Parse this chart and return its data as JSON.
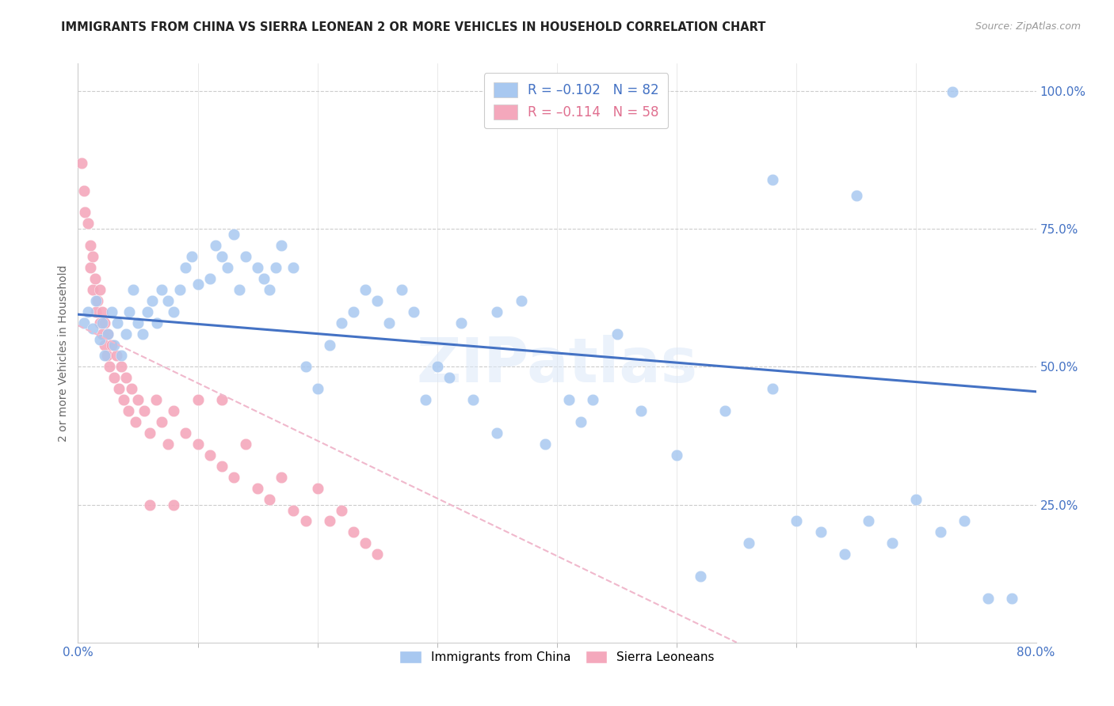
{
  "title": "IMMIGRANTS FROM CHINA VS SIERRA LEONEAN 2 OR MORE VEHICLES IN HOUSEHOLD CORRELATION CHART",
  "source": "Source: ZipAtlas.com",
  "ylabel": "2 or more Vehicles in Household",
  "legend_label1": "Immigrants from China",
  "legend_label2": "Sierra Leoneans",
  "china_color": "#a8c8f0",
  "sierra_color": "#f4a8bc",
  "china_line_color": "#4472c4",
  "sierra_line_color": "#f0b8cc",
  "watermark": "ZIPatlas",
  "xlim": [
    0.0,
    0.8
  ],
  "ylim": [
    0.0,
    1.05
  ],
  "legend1_text": "R = –0.102   N = 82",
  "legend2_text": "R = –0.114   N = 58",
  "china_line_x0": 0.0,
  "china_line_x1": 0.8,
  "china_line_y0": 0.595,
  "china_line_y1": 0.455,
  "sierra_line_x0": 0.0,
  "sierra_line_x1": 0.55,
  "sierra_line_y0": 0.575,
  "sierra_line_y1": 0.0,
  "china_x": [
    0.005,
    0.008,
    0.012,
    0.015,
    0.018,
    0.02,
    0.022,
    0.025,
    0.028,
    0.03,
    0.033,
    0.036,
    0.04,
    0.043,
    0.046,
    0.05,
    0.054,
    0.058,
    0.062,
    0.066,
    0.07,
    0.075,
    0.08,
    0.085,
    0.09,
    0.095,
    0.1,
    0.11,
    0.115,
    0.12,
    0.125,
    0.13,
    0.135,
    0.14,
    0.15,
    0.155,
    0.16,
    0.165,
    0.17,
    0.18,
    0.19,
    0.2,
    0.21,
    0.22,
    0.23,
    0.24,
    0.25,
    0.26,
    0.27,
    0.28,
    0.29,
    0.3,
    0.31,
    0.32,
    0.33,
    0.35,
    0.37,
    0.39,
    0.41,
    0.43,
    0.45,
    0.47,
    0.5,
    0.52,
    0.54,
    0.56,
    0.58,
    0.6,
    0.62,
    0.64,
    0.66,
    0.68,
    0.7,
    0.72,
    0.74,
    0.76,
    0.78,
    0.73,
    0.65,
    0.58,
    0.42,
    0.35
  ],
  "china_y": [
    0.58,
    0.6,
    0.57,
    0.62,
    0.55,
    0.58,
    0.52,
    0.56,
    0.6,
    0.54,
    0.58,
    0.52,
    0.56,
    0.6,
    0.64,
    0.58,
    0.56,
    0.6,
    0.62,
    0.58,
    0.64,
    0.62,
    0.6,
    0.64,
    0.68,
    0.7,
    0.65,
    0.66,
    0.72,
    0.7,
    0.68,
    0.74,
    0.64,
    0.7,
    0.68,
    0.66,
    0.64,
    0.68,
    0.72,
    0.68,
    0.5,
    0.46,
    0.54,
    0.58,
    0.6,
    0.64,
    0.62,
    0.58,
    0.64,
    0.6,
    0.44,
    0.5,
    0.48,
    0.58,
    0.44,
    0.6,
    0.62,
    0.36,
    0.44,
    0.44,
    0.56,
    0.42,
    0.34,
    0.12,
    0.42,
    0.18,
    0.46,
    0.22,
    0.2,
    0.16,
    0.22,
    0.18,
    0.26,
    0.2,
    0.22,
    0.08,
    0.08,
    0.999,
    0.81,
    0.84,
    0.4,
    0.38
  ],
  "sierra_x": [
    0.003,
    0.005,
    0.006,
    0.008,
    0.01,
    0.01,
    0.012,
    0.012,
    0.014,
    0.015,
    0.016,
    0.018,
    0.018,
    0.02,
    0.02,
    0.022,
    0.022,
    0.024,
    0.025,
    0.026,
    0.028,
    0.03,
    0.032,
    0.034,
    0.036,
    0.038,
    0.04,
    0.042,
    0.045,
    0.048,
    0.05,
    0.055,
    0.06,
    0.065,
    0.07,
    0.075,
    0.08,
    0.09,
    0.1,
    0.11,
    0.12,
    0.13,
    0.14,
    0.15,
    0.16,
    0.17,
    0.18,
    0.19,
    0.2,
    0.21,
    0.22,
    0.23,
    0.24,
    0.25,
    0.06,
    0.08,
    0.1,
    0.12
  ],
  "sierra_y": [
    0.87,
    0.82,
    0.78,
    0.76,
    0.72,
    0.68,
    0.7,
    0.64,
    0.66,
    0.6,
    0.62,
    0.58,
    0.64,
    0.56,
    0.6,
    0.54,
    0.58,
    0.52,
    0.56,
    0.5,
    0.54,
    0.48,
    0.52,
    0.46,
    0.5,
    0.44,
    0.48,
    0.42,
    0.46,
    0.4,
    0.44,
    0.42,
    0.38,
    0.44,
    0.4,
    0.36,
    0.42,
    0.38,
    0.36,
    0.34,
    0.32,
    0.3,
    0.36,
    0.28,
    0.26,
    0.3,
    0.24,
    0.22,
    0.28,
    0.22,
    0.24,
    0.2,
    0.18,
    0.16,
    0.25,
    0.25,
    0.44,
    0.44
  ]
}
